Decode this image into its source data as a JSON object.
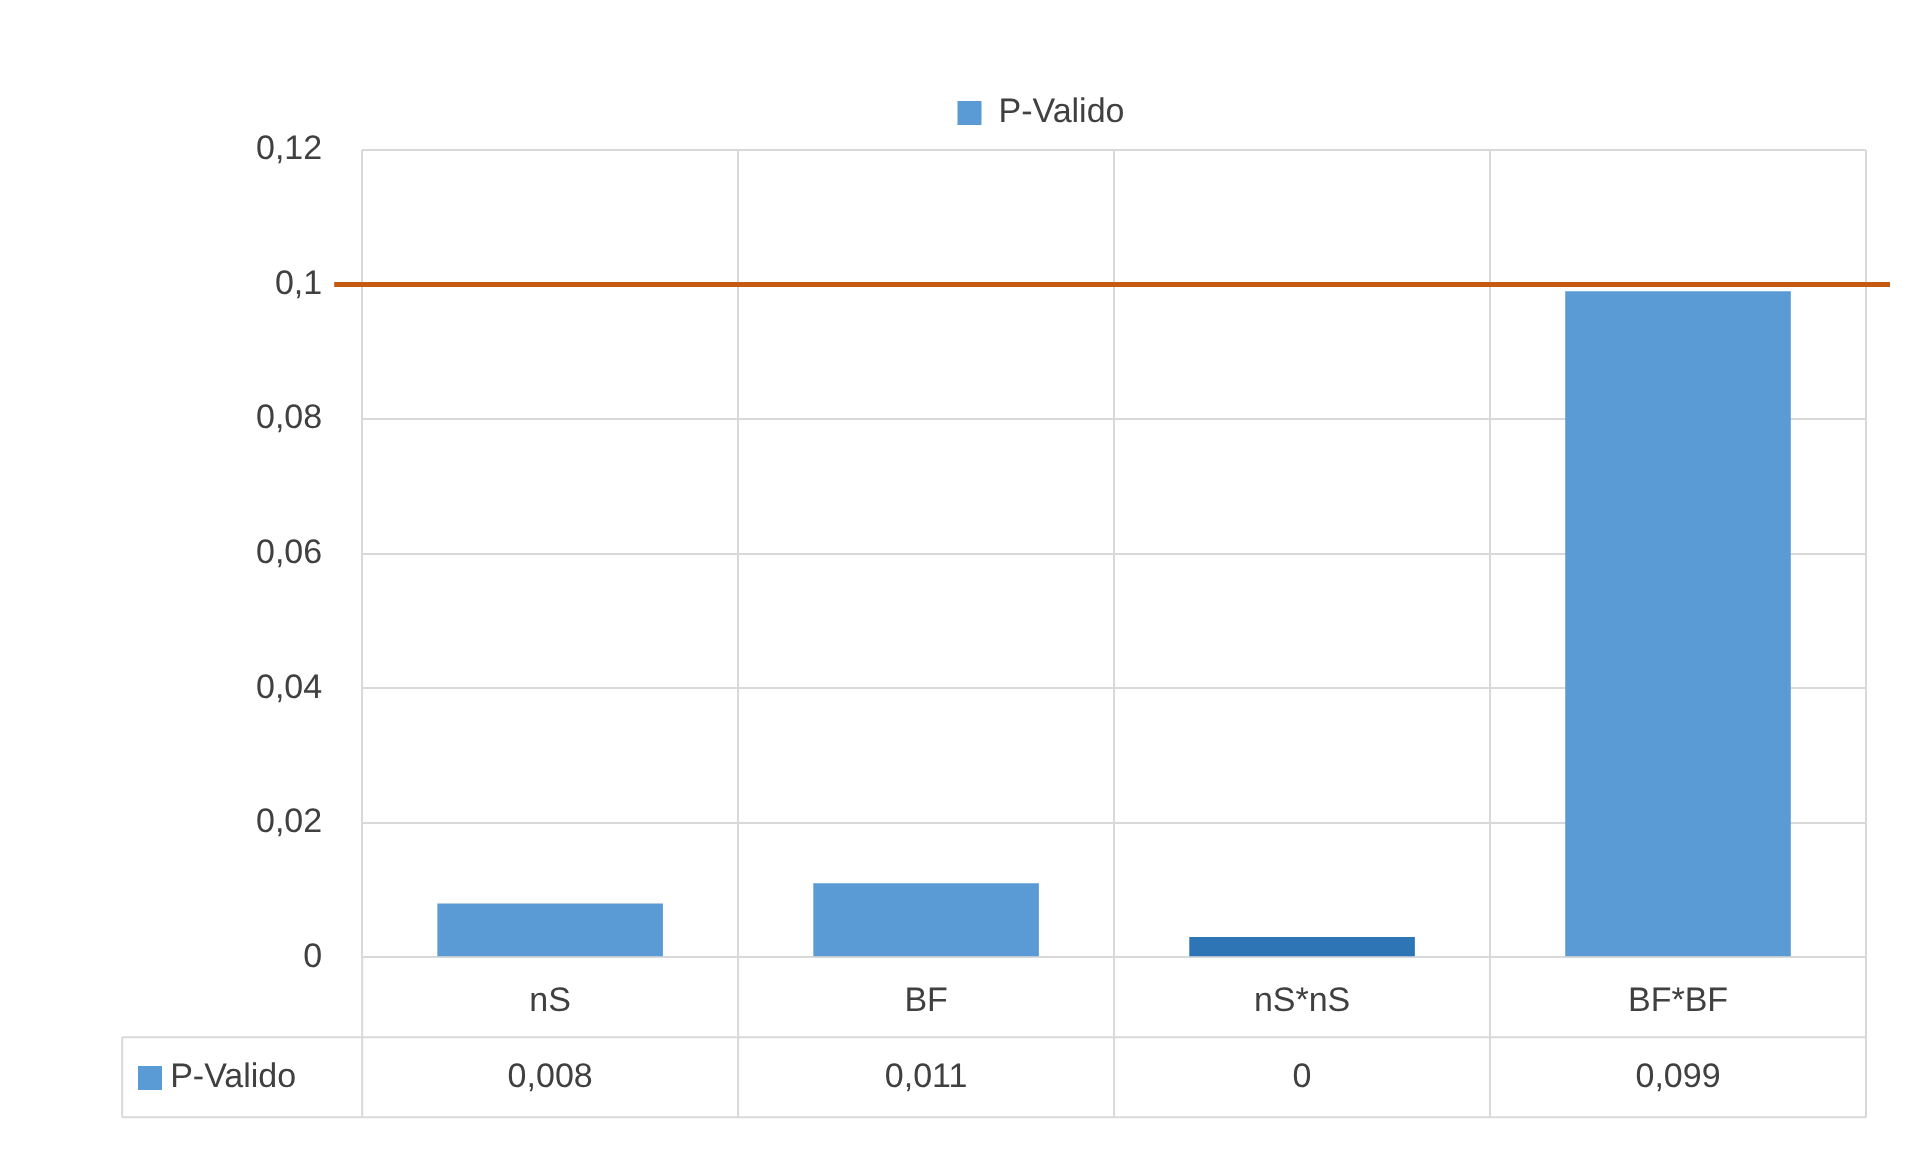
{
  "chart_data": {
    "type": "bar",
    "categories": [
      "nS",
      "BF",
      "nS*nS",
      "BF*BF"
    ],
    "series": [
      {
        "name": "P-Valido",
        "color": "#5b9bd5",
        "colors": [
          "#5b9bd5",
          "#5b9bd5",
          "#2e75b6",
          "#5b9bd5"
        ],
        "values": [
          0.008,
          0.011,
          0.003,
          0.099
        ],
        "value_labels": [
          "0,008",
          "0,011",
          "0",
          "0,099"
        ]
      }
    ],
    "ylim": [
      0,
      0.12
    ],
    "yticks": [
      {
        "value": 0,
        "label": "0"
      },
      {
        "value": 0.02,
        "label": "0,02"
      },
      {
        "value": 0.04,
        "label": "0,04"
      },
      {
        "value": 0.06,
        "label": "0,06"
      },
      {
        "value": 0.08,
        "label": "0,08"
      },
      {
        "value": 0.1,
        "label": "0,1"
      },
      {
        "value": 0.12,
        "label": "0,12"
      }
    ],
    "ref_lines": [
      {
        "axis": "y",
        "value": 0.1,
        "color": "#c55a11"
      }
    ],
    "grid": true,
    "legend": "top"
  }
}
